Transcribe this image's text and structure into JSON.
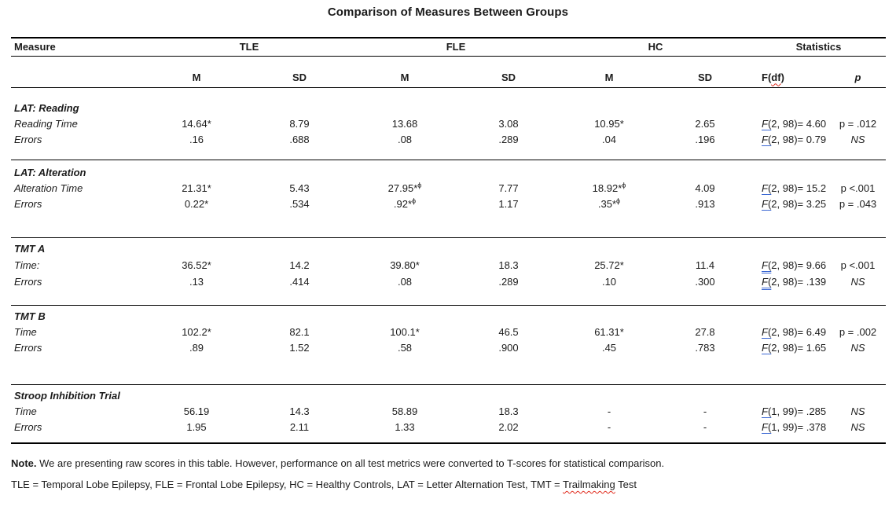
{
  "page": {
    "title": "Comparison of Measures Between Groups"
  },
  "table": {
    "headers": {
      "measure": "Measure",
      "group_tle": "TLE",
      "group_fle": "FLE",
      "group_hc": "HC",
      "group_stats": "Statistics",
      "sub_m1": "M",
      "sub_sd1": "SD",
      "sub_m2": "M",
      "sub_sd2": "SD",
      "sub_m3": "M",
      "sub_sd3": "SD",
      "f_header_pre": "F(",
      "f_header_df": "df",
      "f_header_post": ")",
      "p_header": "p"
    },
    "sections": [
      {
        "title": "LAT: Reading",
        "rows": [
          {
            "label": "Reading Time",
            "values": [
              "14.64*",
              "8.79",
              "13.68",
              "3.08",
              "10.95*",
              "2.65"
            ],
            "f": "F(2, 98)= 4.60",
            "p": "p = .012"
          },
          {
            "label": "Errors",
            "values": [
              ".16",
              ".688",
              ".08",
              ".289",
              ".04",
              ".196"
            ],
            "f": "F(2, 98)= 0.79",
            "p": "NS"
          }
        ]
      },
      {
        "title": "LAT: Alteration",
        "rows": [
          {
            "label": "Alteration Time",
            "values": [
              "21.31*",
              "5.43",
              "27.95*^ϕ",
              "7.77",
              "18.92*^ϕ",
              "4.09"
            ],
            "f": "F(2, 98)= 15.2",
            "p": "p <.001"
          },
          {
            "label": "Errors",
            "values": [
              "0.22*",
              ".534",
              ".92*^ϕ",
              "1.17",
              ".35*^ϕ",
              ".913"
            ],
            "f": "F(2, 98)= 3.25",
            "p": "p = .043"
          }
        ]
      },
      {
        "title": "TMT A",
        "rows": [
          {
            "label": "Time:",
            "values": [
              "36.52*",
              "14.2",
              "39.80*",
              "18.3",
              "25.72*",
              "11.4"
            ],
            "f": "F(2, 98)= 9.66",
            "p": "p <.001"
          },
          {
            "label": "Errors",
            "values": [
              ".13",
              ".414",
              ".08",
              ".289",
              ".10",
              ".300"
            ],
            "f": "F(2, 98)= .139",
            "p": "NS"
          }
        ]
      },
      {
        "title": "TMT B",
        "rows": [
          {
            "label": "Time",
            "values": [
              "102.2*",
              "82.1",
              "100.1*",
              "46.5",
              "61.31*",
              "27.8"
            ],
            "f": "F(2, 98)= 6.49",
            "p": "p = .002"
          },
          {
            "label": "Errors",
            "values": [
              ".89",
              "1.52",
              ".58",
              ".900",
              ".45",
              ".783"
            ],
            "f": "F(2, 98)= 1.65",
            "p": "NS"
          }
        ]
      },
      {
        "title": "Stroop Inhibition Trial",
        "rows": [
          {
            "label": "Time",
            "values": [
              "56.19",
              "14.3",
              "58.89",
              "18.3",
              "-",
              "-"
            ],
            "f": "F(1, 99)= .285",
            "p": "NS"
          },
          {
            "label": "Errors",
            "values": [
              "1.95",
              "2.11",
              "1.33",
              "2.02",
              "-",
              "-"
            ],
            "f": "F(1, 99)= .378",
            "p": "NS"
          }
        ]
      }
    ]
  },
  "footnotes": {
    "note_label": "Note.",
    "note_text": " We are presenting raw scores in this table. However, performance on all test metrics were converted to T-scores for statistical comparison.",
    "abbrev_pre": "TLE = Temporal Lobe Epilepsy, FLE = Frontal Lobe Epilepsy, HC = Healthy Controls, LAT = Letter Alternation Test, TMT = ",
    "abbrev_marked": "Trailmaking",
    "abbrev_post": " Test"
  }
}
